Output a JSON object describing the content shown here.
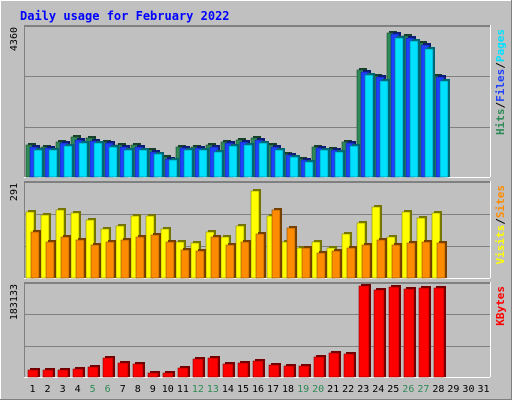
{
  "chart_data": {
    "type": "bar",
    "title": "Daily usage for February 2022",
    "categories": [
      "1",
      "2",
      "3",
      "4",
      "5",
      "6",
      "7",
      "8",
      "9",
      "10",
      "11",
      "12",
      "13",
      "14",
      "15",
      "16",
      "17",
      "18",
      "19",
      "20",
      "21",
      "22",
      "23",
      "24",
      "25",
      "26",
      "27",
      "28",
      "29",
      "30",
      "31"
    ],
    "weekend_days": [
      5,
      6,
      12,
      13,
      19,
      20,
      26,
      27
    ],
    "panels": [
      {
        "id": "hits",
        "ymax": 4360,
        "ymax_label": "4360",
        "axis_labels": [
          "Hits",
          "Files",
          "Pages"
        ],
        "series": [
          {
            "name": "Hits",
            "color": "#2e8b57",
            "values": [
              940,
              880,
              1040,
              1170,
              1140,
              1040,
              940,
              940,
              790,
              590,
              880,
              880,
              940,
              1040,
              1090,
              1140,
              940,
              690,
              540,
              880,
              830,
              1040,
              3150,
              2990,
              4250,
              4150,
              3940,
              2990,
              0,
              0,
              0
            ]
          },
          {
            "name": "Files",
            "color": "#1e40ff",
            "values": [
              880,
              840,
              990,
              1100,
              1070,
              990,
              890,
              890,
              740,
              540,
              840,
              840,
              890,
              990,
              1040,
              1090,
              890,
              640,
              490,
              840,
              790,
              990,
              3100,
              2940,
              4200,
              4100,
              3880,
              2940,
              0,
              0,
              0
            ]
          },
          {
            "name": "Pages",
            "color": "#00e0ff",
            "values": [
              810,
              790,
              900,
              1010,
              990,
              890,
              810,
              810,
              690,
              490,
              790,
              790,
              740,
              900,
              940,
              1010,
              790,
              590,
              440,
              790,
              740,
              900,
              3000,
              2840,
              4100,
              4000,
              3770,
              2840,
              0,
              0,
              0
            ]
          }
        ]
      },
      {
        "id": "visits",
        "ymax": 291,
        "ymax_label": "291",
        "axis_labels": [
          "Visits",
          "Sites"
        ],
        "series": [
          {
            "name": "Visits",
            "color": "#ffff00",
            "values": [
              208,
              198,
              213,
              203,
              183,
              153,
              163,
              193,
              193,
              153,
              113,
              108,
              143,
              128,
              163,
              273,
              193,
              113,
              93,
              113,
              93,
              138,
              173,
              223,
              128,
              208,
              188,
              203,
              0,
              0,
              0
            ]
          },
          {
            "name": "Sites",
            "color": "#ff8c00",
            "values": [
              143,
              113,
              128,
              118,
              103,
              113,
              118,
              128,
              133,
              113,
              88,
              83,
              128,
              103,
              113,
              138,
              213,
              158,
              93,
              78,
              83,
              93,
              103,
              118,
              103,
              108,
              113,
              108,
              0,
              0,
              0
            ]
          }
        ]
      },
      {
        "id": "kbytes",
        "ymax": 183133,
        "ymax_label": "183133",
        "axis_labels": [
          "KBytes"
        ],
        "series": [
          {
            "name": "KBytes",
            "color": "#ff0000",
            "values": [
              14000,
              15000,
              14000,
              17000,
              21000,
              38000,
              29000,
              27000,
              9000,
              8000,
              19000,
              37000,
              38000,
              27000,
              29000,
              32000,
              24000,
              22000,
              22000,
              41000,
              48000,
              46000,
              183000,
              176000,
              181000,
              178000,
              179000,
              179000,
              0,
              0,
              0
            ]
          }
        ]
      }
    ]
  },
  "colors": {
    "background": "#c0c0c0",
    "frame_light": "#ffffff",
    "frame_dark": "#808080",
    "grid": "#808080",
    "title": "#0000ff",
    "weekday_label": "#000000",
    "weekend_label": "#2e8b57"
  }
}
